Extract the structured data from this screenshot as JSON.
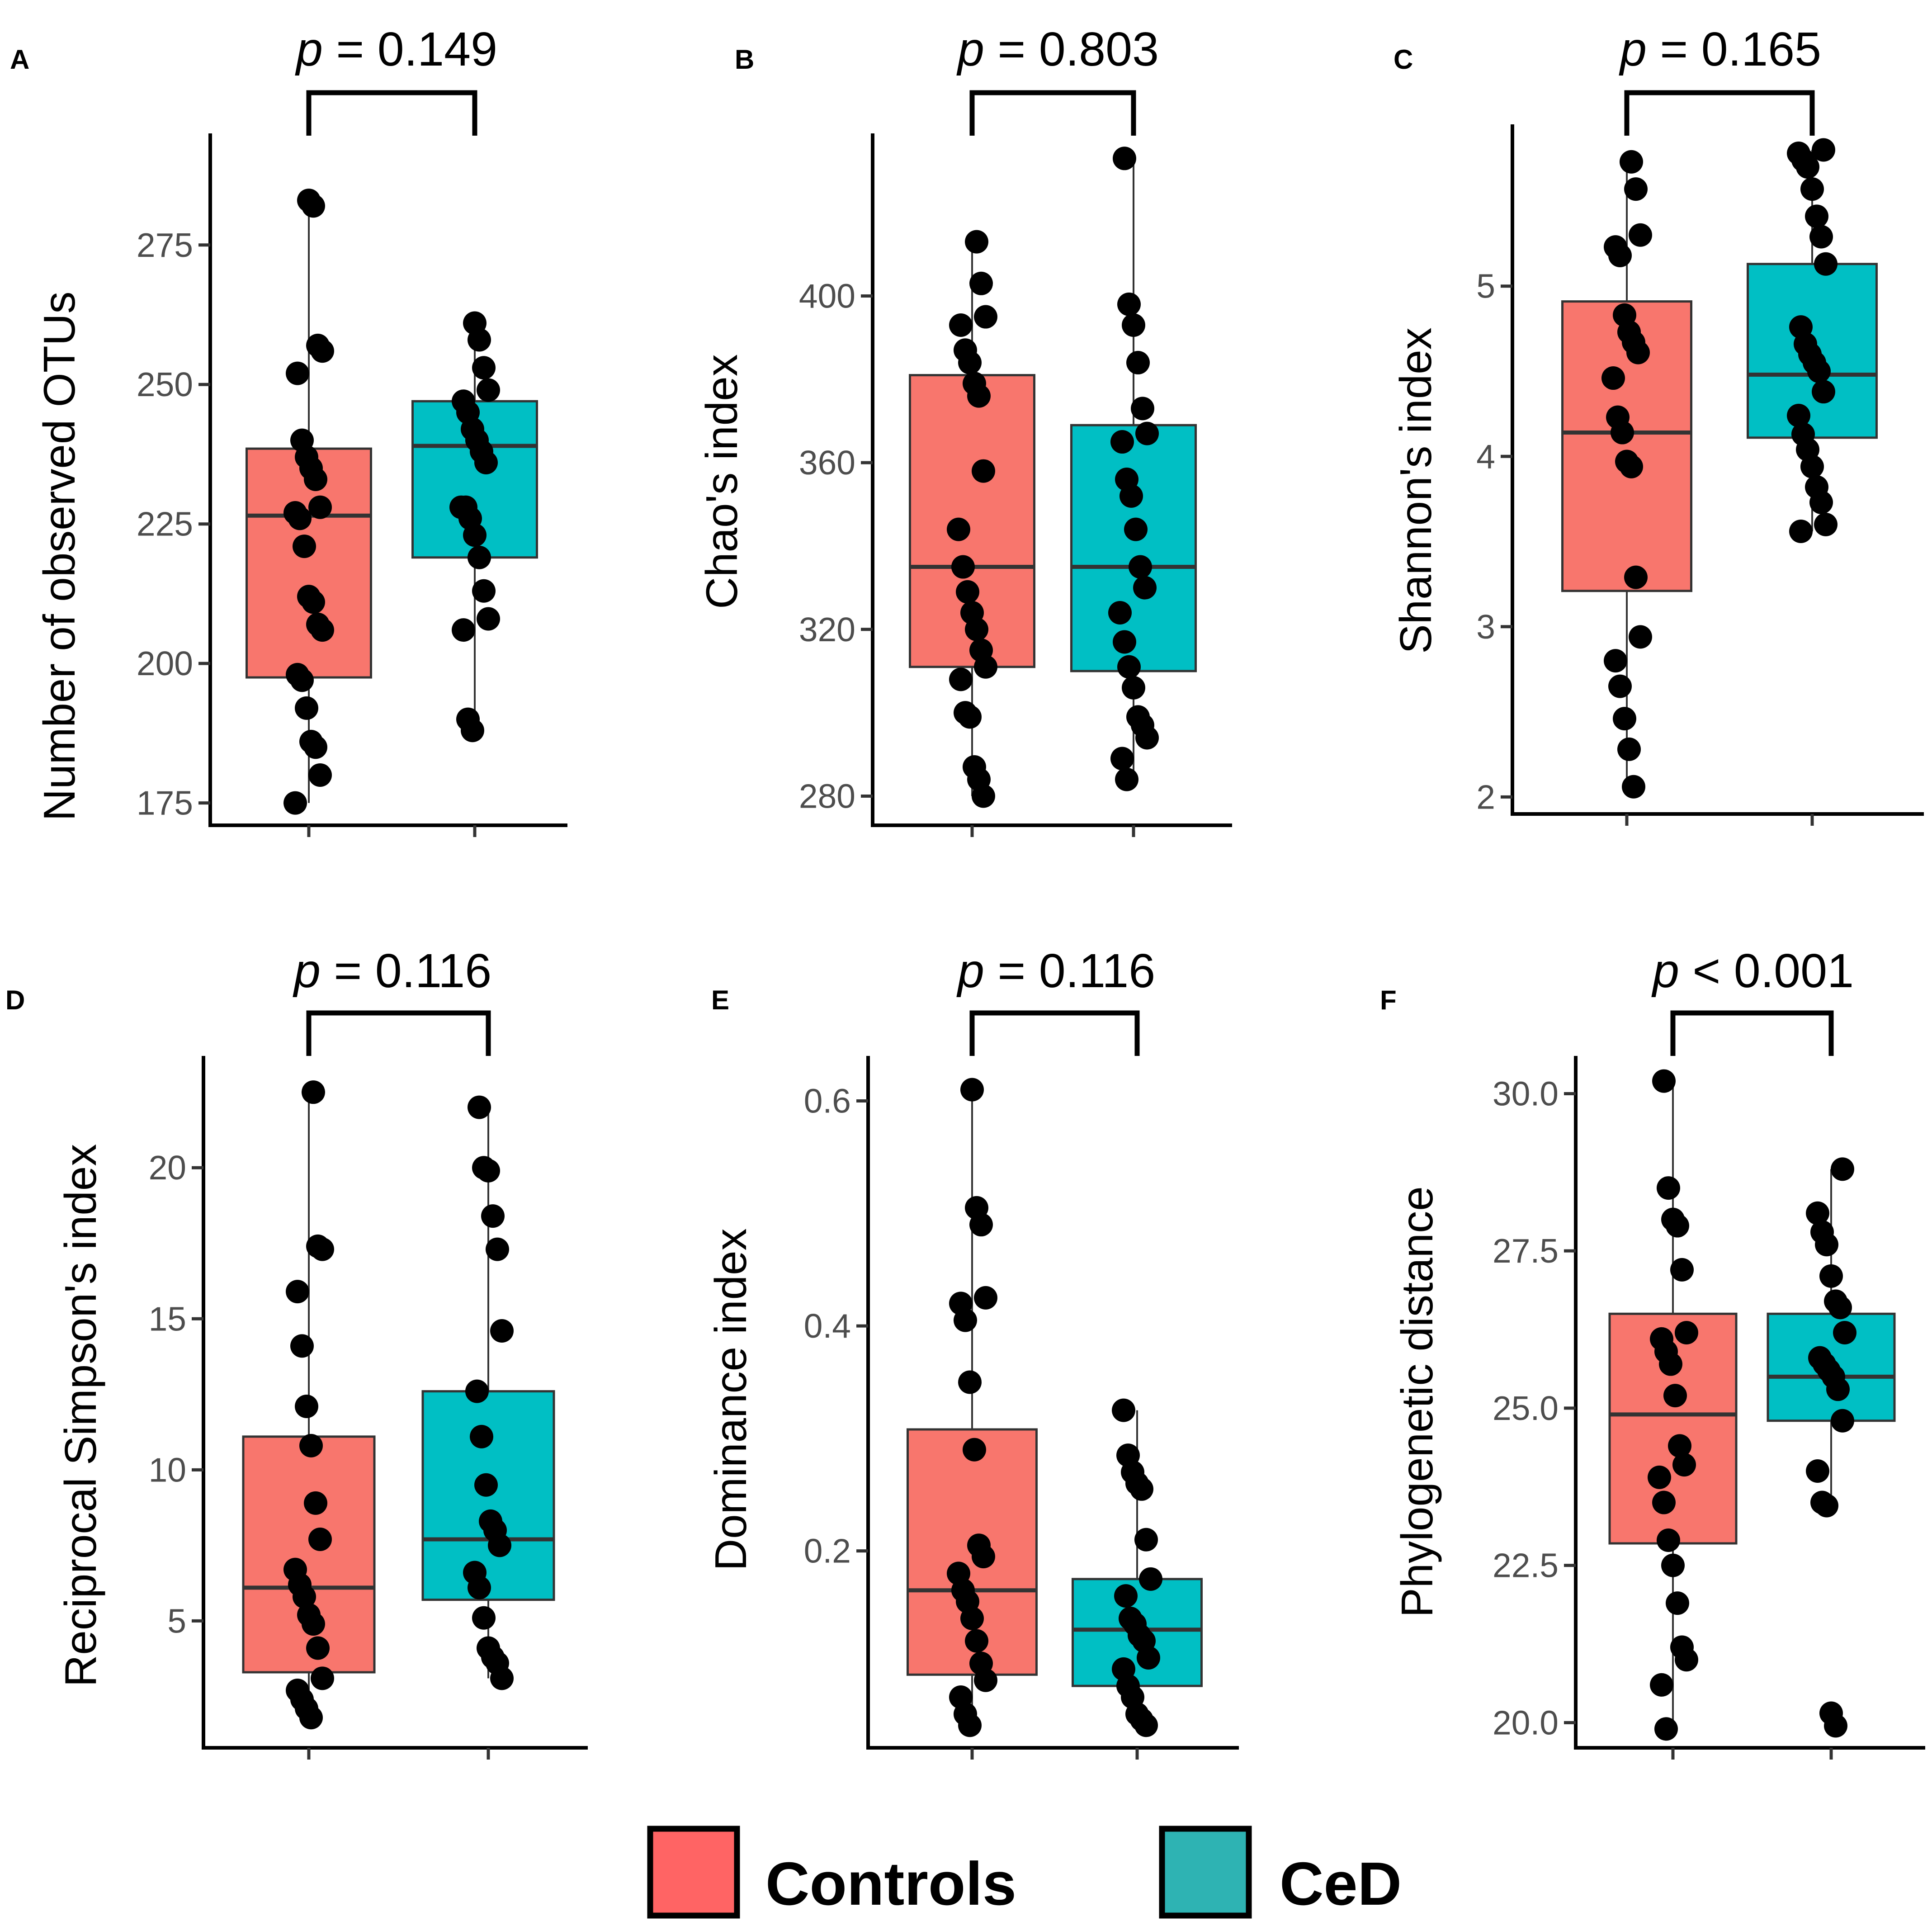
{
  "colors": {
    "controls": "#F8766D",
    "ced": "#00BFC4",
    "legend_controls": "#FF6464",
    "legend_ced": "#2EB3B3",
    "point": "#000000",
    "axis": "#000000",
    "tick_label": "#4d4d4d"
  },
  "legend": {
    "items": [
      {
        "label": "Controls",
        "color_key": "legend_controls"
      },
      {
        "label": "CeD",
        "color_key": "legend_ced"
      }
    ]
  },
  "chart_data": [
    {
      "panel": "A",
      "type": "box",
      "ylabel": "Number of observed OTUs",
      "p_prefix": "p",
      "p_rest": " = 0.149",
      "yticks": [
        175,
        200,
        225,
        250,
        275
      ],
      "ylim": [
        171,
        295
      ],
      "groups": [
        {
          "name": "Controls",
          "color_key": "controls",
          "box": {
            "q1": 197.5,
            "median": 226.5,
            "q3": 238.5,
            "whisker_low": 175,
            "whisker_high": 283
          },
          "points": [
            175,
            180,
            185,
            186,
            192,
            197,
            198,
            206,
            207,
            211,
            212,
            221,
            226,
            227,
            228,
            233,
            235,
            237,
            240,
            252,
            256,
            257,
            282,
            283
          ]
        },
        {
          "name": "CeD",
          "color_key": "ced",
          "box": {
            "q1": 219,
            "median": 239,
            "q3": 247,
            "whisker_low": 188,
            "whisker_high": 261
          },
          "points": [
            188,
            190,
            206,
            208,
            213,
            219,
            223,
            226,
            228,
            228,
            236,
            238,
            240,
            242,
            245,
            247,
            249,
            253,
            258,
            261
          ]
        }
      ]
    },
    {
      "panel": "B",
      "type": "box",
      "ylabel": "Chao's index",
      "p_prefix": "p",
      "p_rest": " = 0.803",
      "yticks": [
        280,
        320,
        360,
        400
      ],
      "ylim": [
        273,
        439
      ],
      "groups": [
        {
          "name": "Controls",
          "color_key": "controls",
          "box": {
            "q1": 311,
            "median": 335,
            "q3": 381,
            "whisker_low": 280,
            "whisker_high": 413
          },
          "points": [
            280,
            284,
            287,
            299,
            300,
            308,
            311,
            315,
            320,
            324,
            329,
            335,
            344,
            358,
            376,
            379,
            384,
            387,
            393,
            395,
            403,
            413
          ]
        },
        {
          "name": "CeD",
          "color_key": "ced",
          "box": {
            "q1": 310,
            "median": 335,
            "q3": 369,
            "whisker_low": 284,
            "whisker_high": 433
          },
          "points": [
            284,
            289,
            294,
            297,
            299,
            306,
            311,
            317,
            324,
            330,
            335,
            344,
            352,
            356,
            365,
            367,
            373,
            384,
            393,
            398,
            433
          ]
        }
      ]
    },
    {
      "panel": "C",
      "type": "box",
      "ylabel": "Shannon's index",
      "p_prefix": "p",
      "p_rest": " = 0.165",
      "yticks": [
        2,
        3,
        4,
        5
      ],
      "ylim": [
        1.9,
        5.95
      ],
      "groups": [
        {
          "name": "Controls",
          "color_key": "controls",
          "box": {
            "q1": 3.21,
            "median": 4.14,
            "q3": 4.91,
            "whisker_low": 2.06,
            "whisker_high": 5.73
          },
          "points": [
            2.06,
            2.28,
            2.46,
            2.65,
            2.8,
            2.94,
            3.29,
            3.94,
            3.97,
            4.14,
            4.23,
            4.46,
            4.61,
            4.67,
            4.73,
            4.83,
            5.18,
            5.23,
            5.3,
            5.57,
            5.73
          ]
        },
        {
          "name": "CeD",
          "color_key": "ced",
          "box": {
            "q1": 4.11,
            "median": 4.48,
            "q3": 5.13,
            "whisker_low": 3.56,
            "whisker_high": 5.8
          },
          "points": [
            3.56,
            3.6,
            3.73,
            3.82,
            3.94,
            4.04,
            4.13,
            4.24,
            4.38,
            4.5,
            4.55,
            4.6,
            4.66,
            4.76,
            5.13,
            5.29,
            5.41,
            5.57,
            5.7,
            5.74,
            5.78,
            5.8
          ]
        }
      ]
    },
    {
      "panel": "D",
      "type": "box",
      "ylabel": "Reciprocal Simpson's index",
      "p_prefix": "p",
      "p_rest": " = 0.116",
      "yticks": [
        5,
        10,
        15,
        20
      ],
      "ylim": [
        0.8,
        23.7
      ],
      "groups": [
        {
          "name": "Controls",
          "color_key": "controls",
          "box": {
            "q1": 3.3,
            "median": 6.1,
            "q3": 11.1,
            "whisker_low": 1.8,
            "whisker_high": 22.5
          },
          "points": [
            1.8,
            2.1,
            2.4,
            2.7,
            3.1,
            4.1,
            4.9,
            5.2,
            5.8,
            6.2,
            6.7,
            7.7,
            8.9,
            10.8,
            12.1,
            14.1,
            15.9,
            17.3,
            17.4,
            22.5
          ]
        },
        {
          "name": "CeD",
          "color_key": "ced",
          "box": {
            "q1": 5.7,
            "median": 7.7,
            "q3": 12.6,
            "whisker_low": 3.1,
            "whisker_high": 22
          },
          "points": [
            3.1,
            3.6,
            3.8,
            4.1,
            5.1,
            6.1,
            6.6,
            7.5,
            8,
            8.3,
            9.5,
            11.1,
            12.6,
            14.6,
            17.3,
            18.4,
            19.9,
            20,
            22
          ]
        }
      ]
    },
    {
      "panel": "E",
      "type": "box",
      "ylabel": "Dominance index",
      "p_prefix": "p",
      "p_rest": " = 0.116",
      "yticks": [
        0.2,
        0.4,
        0.6
      ],
      "ylim": [
        0.025,
        0.64
      ],
      "groups": [
        {
          "name": "Controls",
          "color_key": "controls",
          "box": {
            "q1": 0.09,
            "median": 0.165,
            "q3": 0.308,
            "whisker_low": 0.045,
            "whisker_high": 0.61
          },
          "points": [
            0.045,
            0.055,
            0.07,
            0.085,
            0.1,
            0.12,
            0.14,
            0.155,
            0.165,
            0.18,
            0.195,
            0.205,
            0.29,
            0.35,
            0.405,
            0.42,
            0.425,
            0.49,
            0.505,
            0.61
          ]
        },
        {
          "name": "CeD",
          "color_key": "ced",
          "box": {
            "q1": 0.08,
            "median": 0.13,
            "q3": 0.175,
            "whisker_low": 0.045,
            "whisker_high": 0.325
          },
          "points": [
            0.045,
            0.05,
            0.055,
            0.07,
            0.08,
            0.095,
            0.105,
            0.12,
            0.125,
            0.135,
            0.14,
            0.16,
            0.175,
            0.21,
            0.255,
            0.26,
            0.27,
            0.285,
            0.325
          ]
        }
      ]
    },
    {
      "panel": "F",
      "type": "box",
      "ylabel": "Phylogenetic distance",
      "p_prefix": "p",
      "p_rest": " < 0.001",
      "yticks": [
        "20.0",
        "22.5",
        "25.0",
        "27.5",
        "30.0"
      ],
      "ytick_values": [
        20,
        22.5,
        25,
        27.5,
        30
      ],
      "ylim": [
        19.6,
        30.6
      ],
      "groups": [
        {
          "name": "Controls",
          "color_key": "controls",
          "box": {
            "q1": 22.85,
            "median": 24.9,
            "q3": 26.5,
            "whisker_low": 19.9,
            "whisker_high": 30.2
          },
          "points": [
            19.9,
            20.6,
            21,
            21.2,
            21.9,
            22.5,
            22.9,
            23.5,
            23.9,
            24.1,
            24.4,
            25.2,
            25.7,
            25.9,
            26.1,
            26.2,
            27.2,
            27.9,
            28,
            28.5,
            30.2
          ]
        },
        {
          "name": "CeD",
          "color_key": "ced",
          "box": {
            "q1": 24.8,
            "median": 25.5,
            "q3": 26.5,
            "whisker_low": 23.5,
            "whisker_high": 28.8
          },
          "points": [
            19.95,
            20.15,
            23.45,
            23.5,
            24,
            24.8,
            25.3,
            25.5,
            25.6,
            25.7,
            25.8,
            26.2,
            26.6,
            26.7,
            27.1,
            27.6,
            27.8,
            28.1,
            28.8
          ]
        }
      ]
    }
  ]
}
